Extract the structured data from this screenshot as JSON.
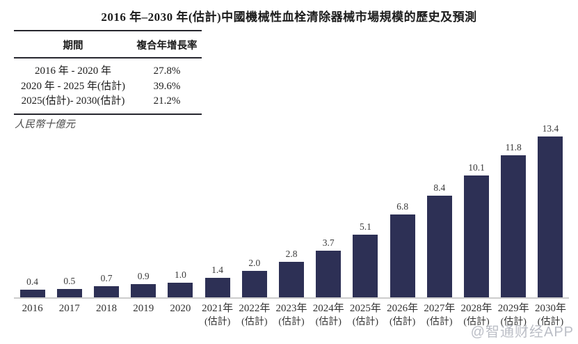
{
  "title": "2016 年–2030 年(估計)中國機械性血栓清除器械市場規模的歷史及預測",
  "unit_label": "人民幣十億元",
  "watermark": "@智通财经APP",
  "colors": {
    "bar": "#2d3055",
    "axis_line": "#cccccc",
    "title_text": "#1c1c1c",
    "table_rule": "#26262e",
    "watermark": "#b4b7c0"
  },
  "cagr_table": {
    "headers": [
      "期間",
      "複合年增長率"
    ],
    "rows": [
      {
        "period": "2016 年 - 2020 年",
        "cagr": "27.8%"
      },
      {
        "period": "2020 年 - 2025 年(估計)",
        "cagr": "39.6%"
      },
      {
        "period": "2025(估計)- 2030(估計)",
        "cagr": "21.2%"
      }
    ]
  },
  "chart_data": {
    "type": "bar",
    "title": "2016 年–2030 年(估計)中國機械性血栓清除器械市場規模的歷史及預測",
    "ylabel": "人民幣十億元",
    "xlabel": "",
    "categories": [
      "2016",
      "2017",
      "2018",
      "2019",
      "2020",
      "2021年",
      "2022年",
      "2023年",
      "2024年",
      "2025年",
      "2026年",
      "2027年",
      "2028年",
      "2029年",
      "2030年"
    ],
    "category_sublabels": [
      "",
      "",
      "",
      "",
      "",
      "(估計)",
      "(估計)",
      "(估計)",
      "(估計)",
      "(估計)",
      "(估計)",
      "(估計)",
      "(估計)",
      "(估計)",
      "(估計)"
    ],
    "values": [
      0.4,
      0.5,
      0.7,
      0.9,
      1.0,
      1.4,
      2.0,
      2.8,
      3.7,
      5.1,
      6.8,
      8.4,
      10.1,
      11.8,
      13.4
    ],
    "value_labels": [
      "0.4",
      "0.5",
      "0.7",
      "0.9",
      "1.0",
      "1.4",
      "2.0",
      "2.8",
      "3.7",
      "5.1",
      "6.8",
      "8.4",
      "10.1",
      "11.8",
      "13.4"
    ],
    "ylim": [
      0,
      13.4
    ],
    "gridlines": false,
    "legend": "none",
    "bar_color": "#2d3055"
  }
}
